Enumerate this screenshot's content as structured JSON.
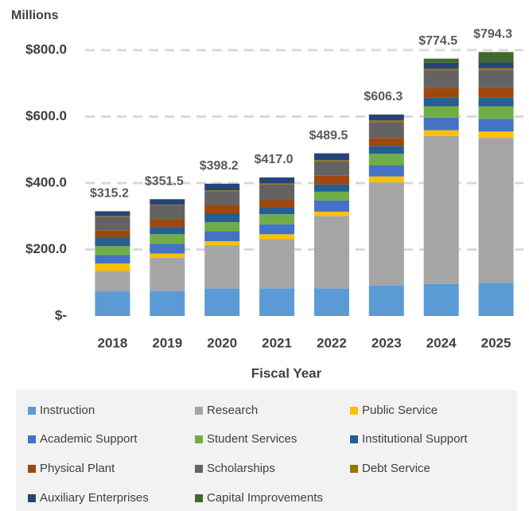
{
  "chart_data": {
    "type": "stacked_bar",
    "y_axis_label": "Millions",
    "x_axis_label": "Fiscal Year",
    "categories": [
      "2018",
      "2019",
      "2020",
      "2021",
      "2022",
      "2023",
      "2024",
      "2025"
    ],
    "series": [
      {
        "name": "Instruction",
        "color": "#5b9bd5",
        "values": [
          74,
          75,
          83,
          83,
          83,
          92,
          96,
          100
        ]
      },
      {
        "name": "Research",
        "color": "#a5a5a5",
        "values": [
          62,
          100,
          130,
          148,
          218,
          310,
          446,
          436
        ]
      },
      {
        "name": "Public Service",
        "color": "#ffc000",
        "values": [
          22,
          13,
          12,
          15,
          13,
          18,
          17,
          19
        ]
      },
      {
        "name": "Academic Support",
        "color": "#4472c4",
        "values": [
          26,
          29,
          30,
          30,
          34,
          34,
          38,
          38
        ]
      },
      {
        "name": "Student Services",
        "color": "#70ad47",
        "values": [
          26,
          29,
          27,
          30,
          26,
          34,
          34,
          38
        ]
      },
      {
        "name": "Institutional Support",
        "color": "#255e91",
        "values": [
          26,
          22,
          27,
          22,
          22,
          24,
          26,
          26
        ]
      },
      {
        "name": "Physical Plant",
        "color": "#9e480e",
        "values": [
          22,
          24,
          24,
          24,
          26,
          24,
          29,
          31
        ]
      },
      {
        "name": "Scholarships",
        "color": "#636363",
        "values": [
          41,
          41,
          42,
          44,
          43,
          48,
          53,
          53
        ]
      },
      {
        "name": "Debt Service",
        "color": "#997300",
        "values": [
          2,
          2,
          3,
          3,
          4,
          5,
          5,
          5
        ]
      },
      {
        "name": "Auxiliary Enterprises",
        "color": "#264478",
        "values": [
          14.2,
          16.5,
          20.2,
          18,
          20.5,
          17.3,
          18,
          17
        ]
      },
      {
        "name": "Capital Improvements",
        "color": "#43682b",
        "values": [
          0,
          0,
          0,
          0,
          0,
          0,
          12.5,
          31.3
        ]
      }
    ],
    "totals": [
      315.2,
      351.5,
      398.2,
      417.0,
      489.5,
      606.3,
      774.5,
      794.3
    ],
    "total_labels": [
      "$315.2",
      "$351.5",
      "$398.2",
      "$417.0",
      "$489.5",
      "$606.3",
      "$774.5",
      "$794.3"
    ],
    "ylim": [
      0,
      800
    ],
    "yticks": [
      {
        "value": 0,
        "label": "$-"
      },
      {
        "value": 200,
        "label": "$200.0"
      },
      {
        "value": 400,
        "label": "$400.0"
      },
      {
        "value": 600,
        "label": "$600.0"
      },
      {
        "value": 800,
        "label": "$800.0"
      }
    ],
    "grid": true,
    "legend": "bottom"
  }
}
